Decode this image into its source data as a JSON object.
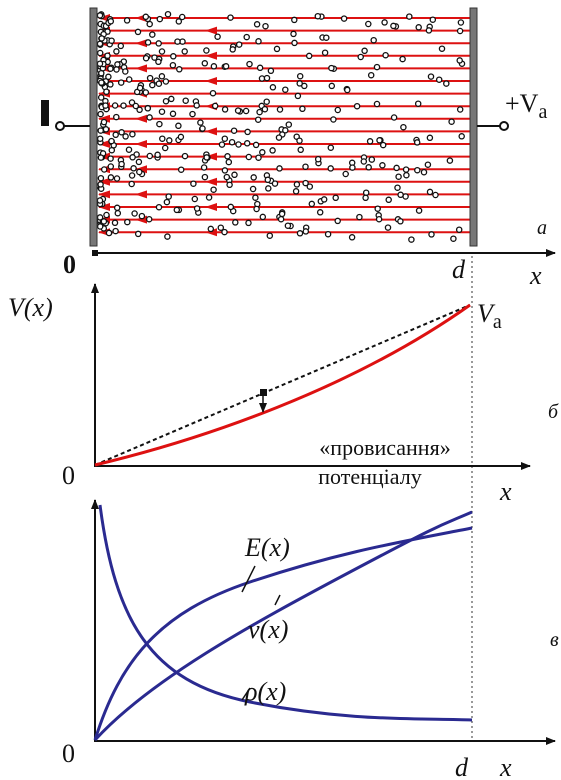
{
  "panel_a": {
    "anode": {
      "main": "+V",
      "sub": "а"
    },
    "letter": "а",
    "origin": "0",
    "d": "d",
    "x": "x"
  },
  "panel_b": {
    "y_label": "V(x)",
    "end_label": {
      "main": "V",
      "sub": "а"
    },
    "letter": "б",
    "annotation": [
      "«провисання»",
      "потенціалу"
    ],
    "origin": "0",
    "x": "x"
  },
  "panel_c": {
    "letter": "в",
    "curves": [
      "E(x)",
      "v(x)",
      "ρ(x)"
    ],
    "origin": "0",
    "d": "d",
    "x": "x"
  }
}
